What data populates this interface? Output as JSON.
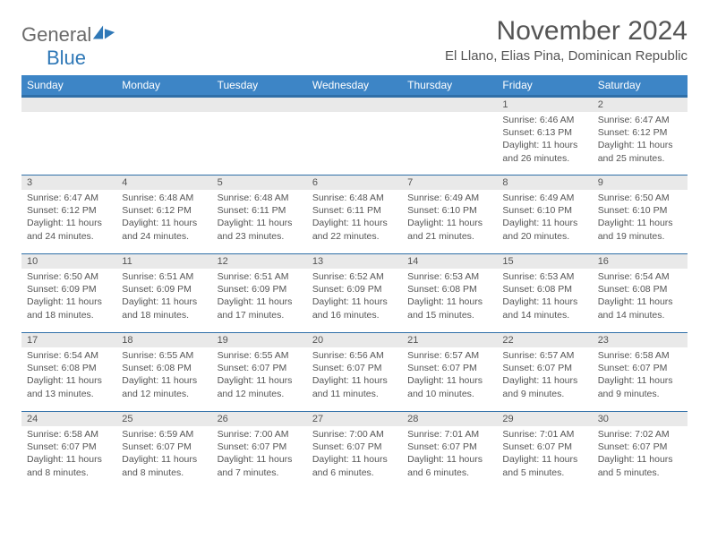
{
  "logo": {
    "word1": "General",
    "word2": "Blue"
  },
  "title": "November 2024",
  "location": "El Llano, Elias Pina, Dominican Republic",
  "colors": {
    "header_bg": "#3d85c6",
    "header_border": "#2f6fa8",
    "daynum_bg": "#e9e9e9",
    "text": "#555555",
    "logo_gray": "#6a6a6a",
    "logo_blue": "#2f78b7"
  },
  "typography": {
    "title_fontsize": 30,
    "location_fontsize": 15,
    "dayheader_fontsize": 12,
    "cell_fontsize": 10.5
  },
  "day_headers": [
    "Sunday",
    "Monday",
    "Tuesday",
    "Wednesday",
    "Thursday",
    "Friday",
    "Saturday"
  ],
  "weeks": [
    [
      null,
      null,
      null,
      null,
      null,
      {
        "n": "1",
        "sr": "Sunrise: 6:46 AM",
        "ss": "Sunset: 6:13 PM",
        "dl": "Daylight: 11 hours and 26 minutes."
      },
      {
        "n": "2",
        "sr": "Sunrise: 6:47 AM",
        "ss": "Sunset: 6:12 PM",
        "dl": "Daylight: 11 hours and 25 minutes."
      }
    ],
    [
      {
        "n": "3",
        "sr": "Sunrise: 6:47 AM",
        "ss": "Sunset: 6:12 PM",
        "dl": "Daylight: 11 hours and 24 minutes."
      },
      {
        "n": "4",
        "sr": "Sunrise: 6:48 AM",
        "ss": "Sunset: 6:12 PM",
        "dl": "Daylight: 11 hours and 24 minutes."
      },
      {
        "n": "5",
        "sr": "Sunrise: 6:48 AM",
        "ss": "Sunset: 6:11 PM",
        "dl": "Daylight: 11 hours and 23 minutes."
      },
      {
        "n": "6",
        "sr": "Sunrise: 6:48 AM",
        "ss": "Sunset: 6:11 PM",
        "dl": "Daylight: 11 hours and 22 minutes."
      },
      {
        "n": "7",
        "sr": "Sunrise: 6:49 AM",
        "ss": "Sunset: 6:10 PM",
        "dl": "Daylight: 11 hours and 21 minutes."
      },
      {
        "n": "8",
        "sr": "Sunrise: 6:49 AM",
        "ss": "Sunset: 6:10 PM",
        "dl": "Daylight: 11 hours and 20 minutes."
      },
      {
        "n": "9",
        "sr": "Sunrise: 6:50 AM",
        "ss": "Sunset: 6:10 PM",
        "dl": "Daylight: 11 hours and 19 minutes."
      }
    ],
    [
      {
        "n": "10",
        "sr": "Sunrise: 6:50 AM",
        "ss": "Sunset: 6:09 PM",
        "dl": "Daylight: 11 hours and 18 minutes."
      },
      {
        "n": "11",
        "sr": "Sunrise: 6:51 AM",
        "ss": "Sunset: 6:09 PM",
        "dl": "Daylight: 11 hours and 18 minutes."
      },
      {
        "n": "12",
        "sr": "Sunrise: 6:51 AM",
        "ss": "Sunset: 6:09 PM",
        "dl": "Daylight: 11 hours and 17 minutes."
      },
      {
        "n": "13",
        "sr": "Sunrise: 6:52 AM",
        "ss": "Sunset: 6:09 PM",
        "dl": "Daylight: 11 hours and 16 minutes."
      },
      {
        "n": "14",
        "sr": "Sunrise: 6:53 AM",
        "ss": "Sunset: 6:08 PM",
        "dl": "Daylight: 11 hours and 15 minutes."
      },
      {
        "n": "15",
        "sr": "Sunrise: 6:53 AM",
        "ss": "Sunset: 6:08 PM",
        "dl": "Daylight: 11 hours and 14 minutes."
      },
      {
        "n": "16",
        "sr": "Sunrise: 6:54 AM",
        "ss": "Sunset: 6:08 PM",
        "dl": "Daylight: 11 hours and 14 minutes."
      }
    ],
    [
      {
        "n": "17",
        "sr": "Sunrise: 6:54 AM",
        "ss": "Sunset: 6:08 PM",
        "dl": "Daylight: 11 hours and 13 minutes."
      },
      {
        "n": "18",
        "sr": "Sunrise: 6:55 AM",
        "ss": "Sunset: 6:08 PM",
        "dl": "Daylight: 11 hours and 12 minutes."
      },
      {
        "n": "19",
        "sr": "Sunrise: 6:55 AM",
        "ss": "Sunset: 6:07 PM",
        "dl": "Daylight: 11 hours and 12 minutes."
      },
      {
        "n": "20",
        "sr": "Sunrise: 6:56 AM",
        "ss": "Sunset: 6:07 PM",
        "dl": "Daylight: 11 hours and 11 minutes."
      },
      {
        "n": "21",
        "sr": "Sunrise: 6:57 AM",
        "ss": "Sunset: 6:07 PM",
        "dl": "Daylight: 11 hours and 10 minutes."
      },
      {
        "n": "22",
        "sr": "Sunrise: 6:57 AM",
        "ss": "Sunset: 6:07 PM",
        "dl": "Daylight: 11 hours and 9 minutes."
      },
      {
        "n": "23",
        "sr": "Sunrise: 6:58 AM",
        "ss": "Sunset: 6:07 PM",
        "dl": "Daylight: 11 hours and 9 minutes."
      }
    ],
    [
      {
        "n": "24",
        "sr": "Sunrise: 6:58 AM",
        "ss": "Sunset: 6:07 PM",
        "dl": "Daylight: 11 hours and 8 minutes."
      },
      {
        "n": "25",
        "sr": "Sunrise: 6:59 AM",
        "ss": "Sunset: 6:07 PM",
        "dl": "Daylight: 11 hours and 8 minutes."
      },
      {
        "n": "26",
        "sr": "Sunrise: 7:00 AM",
        "ss": "Sunset: 6:07 PM",
        "dl": "Daylight: 11 hours and 7 minutes."
      },
      {
        "n": "27",
        "sr": "Sunrise: 7:00 AM",
        "ss": "Sunset: 6:07 PM",
        "dl": "Daylight: 11 hours and 6 minutes."
      },
      {
        "n": "28",
        "sr": "Sunrise: 7:01 AM",
        "ss": "Sunset: 6:07 PM",
        "dl": "Daylight: 11 hours and 6 minutes."
      },
      {
        "n": "29",
        "sr": "Sunrise: 7:01 AM",
        "ss": "Sunset: 6:07 PM",
        "dl": "Daylight: 11 hours and 5 minutes."
      },
      {
        "n": "30",
        "sr": "Sunrise: 7:02 AM",
        "ss": "Sunset: 6:07 PM",
        "dl": "Daylight: 11 hours and 5 minutes."
      }
    ]
  ]
}
